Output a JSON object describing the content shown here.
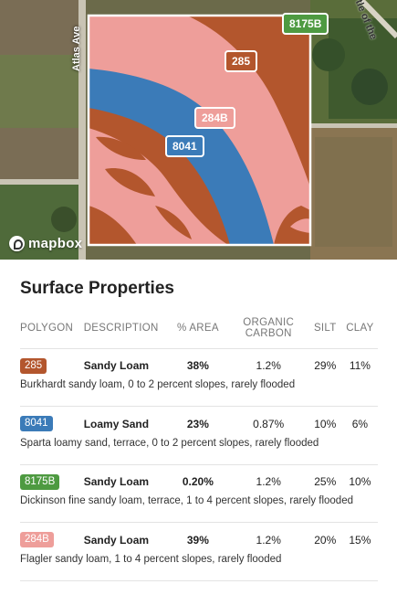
{
  "map": {
    "attribution": "mapbox",
    "road_left": "Atlas Ave",
    "road_top_right": "tle of the",
    "badges": [
      {
        "label": "8175B",
        "color": "#4e9a41"
      },
      {
        "label": "285",
        "color": "#b3562d"
      },
      {
        "label": "284B",
        "color": "#ee9e9a"
      },
      {
        "label": "8041",
        "color": "#3b7bb8"
      }
    ]
  },
  "section_title": "Surface Properties",
  "table": {
    "headers": {
      "polygon": "POLYGON",
      "description": "DESCRIPTION",
      "area": "% AREA",
      "organic_carbon": "ORGANIC CARBON",
      "silt": "SILT",
      "clay": "CLAY"
    },
    "rows": [
      {
        "polygon": "285",
        "color": "#b3562d",
        "description": "Sandy Loam",
        "area": "38%",
        "organic_carbon": "1.2%",
        "silt": "29%",
        "clay": "11%",
        "detail": "Burkhardt sandy loam, 0 to 2 percent slopes, rarely flooded"
      },
      {
        "polygon": "8041",
        "color": "#3b7bb8",
        "description": "Loamy Sand",
        "area": "23%",
        "organic_carbon": "0.87%",
        "silt": "10%",
        "clay": "6%",
        "detail": "Sparta loamy sand, terrace, 0 to 2 percent slopes, rarely flooded"
      },
      {
        "polygon": "8175B",
        "color": "#4e9a41",
        "description": "Sandy Loam",
        "area": "0.20%",
        "organic_carbon": "1.2%",
        "silt": "25%",
        "clay": "10%",
        "detail": "Dickinson fine sandy loam, terrace, 1 to 4 percent slopes, rarely flooded"
      },
      {
        "polygon": "284B",
        "color": "#ee9e9a",
        "description": "Sandy Loam",
        "area": "39%",
        "organic_carbon": "1.2%",
        "silt": "20%",
        "clay": "15%",
        "detail": "Flagler sandy loam, 1 to 4 percent slopes, rarely flooded"
      }
    ]
  }
}
